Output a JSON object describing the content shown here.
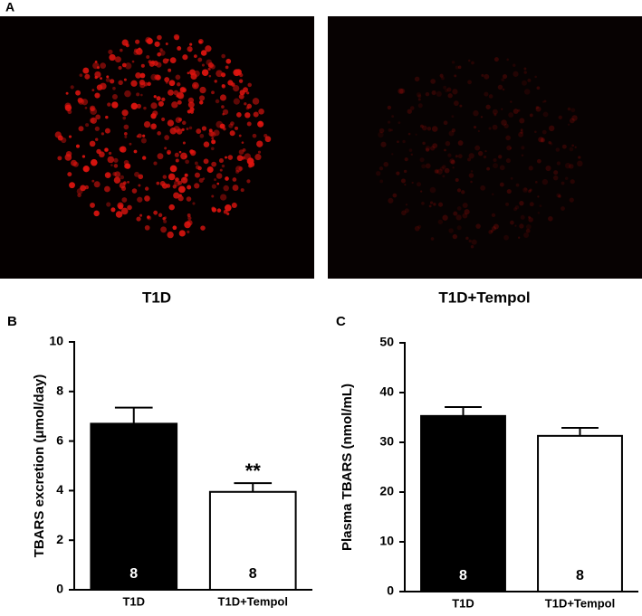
{
  "panels": {
    "a": "A",
    "b": "B",
    "c": "C"
  },
  "images": [
    {
      "caption": "T1D"
    },
    {
      "caption": "T1D+Tempol"
    }
  ],
  "chart_data": [
    {
      "type": "bar",
      "ylabel": "TBARS excretion (μmol/day)",
      "categories": [
        "T1D",
        "T1D+Tempol"
      ],
      "values": [
        6.7,
        3.95
      ],
      "errors": [
        0.65,
        0.35
      ],
      "colors": [
        "#000000",
        "#ffffff"
      ],
      "n": [
        8,
        8
      ],
      "significance": [
        null,
        "**"
      ],
      "ylim": [
        0,
        10
      ],
      "yticks": [
        0,
        2,
        4,
        6,
        8,
        10
      ],
      "grid": false
    },
    {
      "type": "bar",
      "ylabel": "Plasma TBARS (nmol/mL)",
      "categories": [
        "T1D",
        "T1D+Tempol"
      ],
      "values": [
        35.3,
        31.3
      ],
      "errors": [
        1.8,
        1.6
      ],
      "colors": [
        "#000000",
        "#ffffff"
      ],
      "n": [
        8,
        8
      ],
      "significance": [
        null,
        null
      ],
      "ylim": [
        0,
        50
      ],
      "yticks": [
        0,
        10,
        20,
        30,
        40,
        50
      ],
      "grid": false
    }
  ]
}
